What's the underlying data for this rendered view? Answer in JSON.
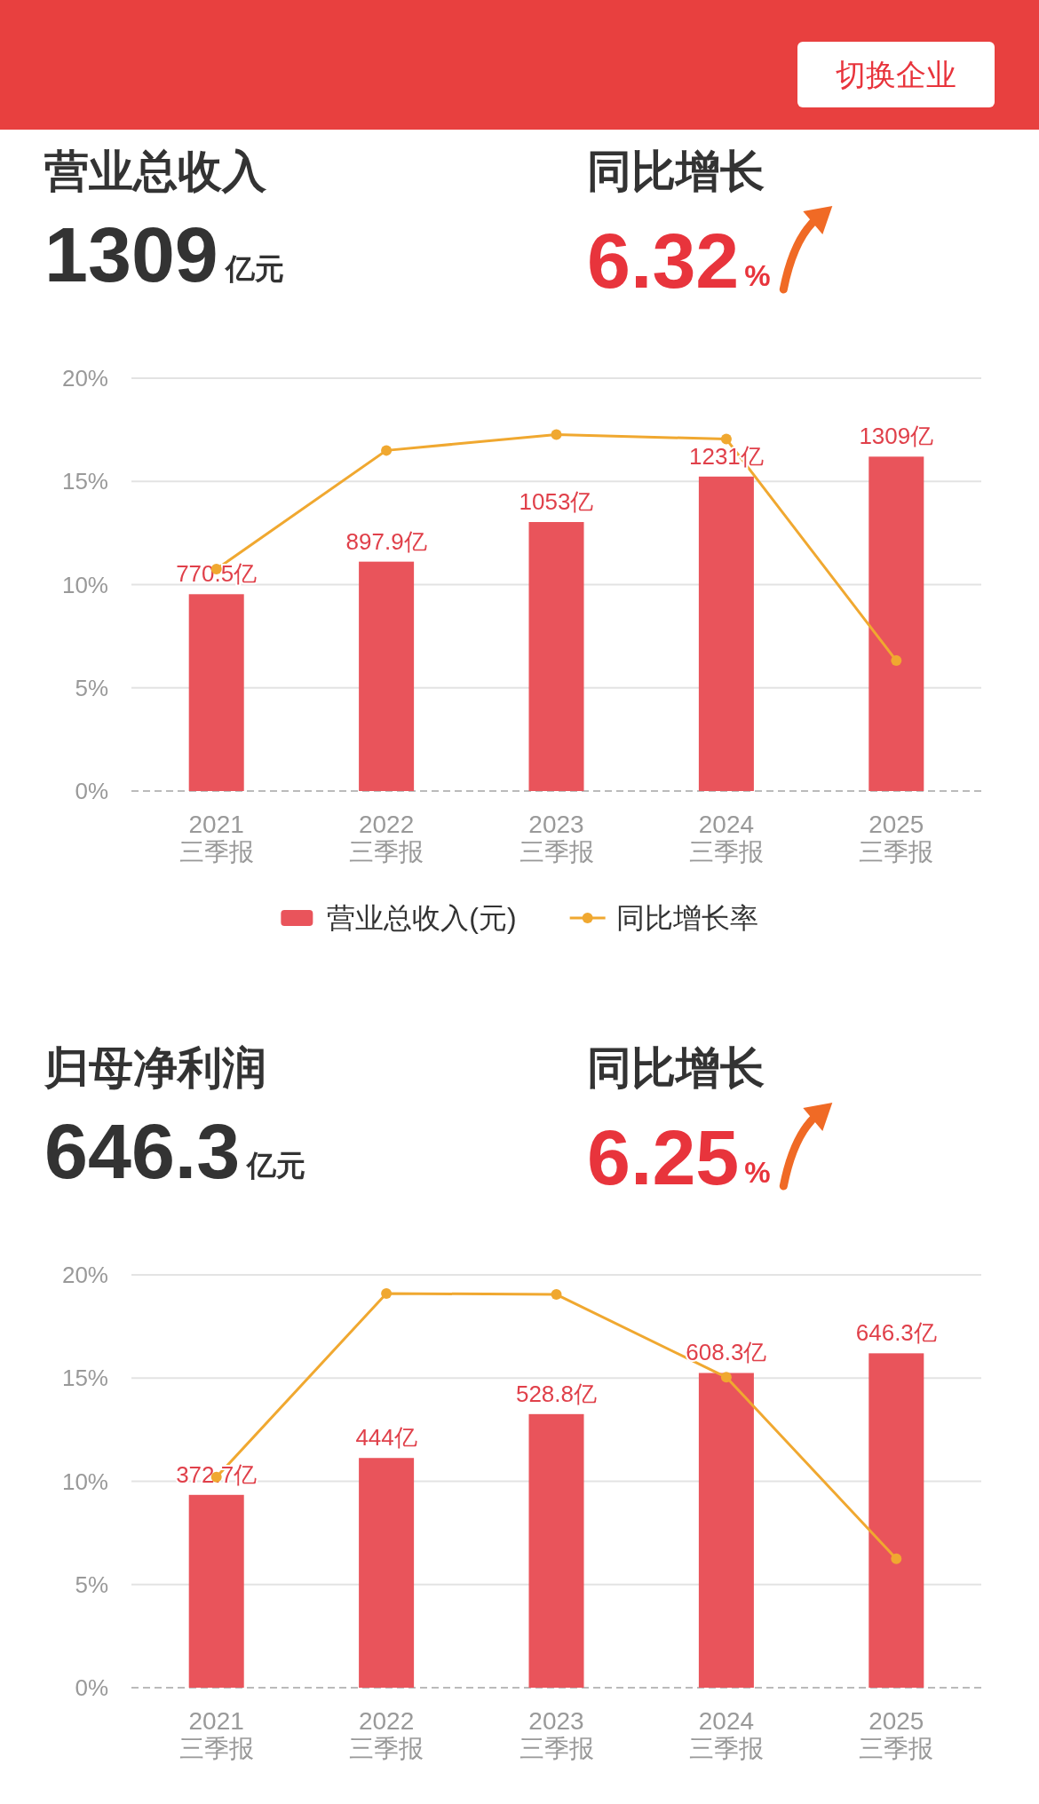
{
  "chart_data": [
    {
      "type": "bar",
      "title": "营业总收入",
      "annotations": [
        "1309",
        "亿元",
        "同比增长",
        "6.32",
        "%",
        "切换企业"
      ],
      "categories": [
        "2021\n三季报",
        "2022\n三季报",
        "2023\n三季报",
        "2024\n三季报",
        "2025\n三季报"
      ],
      "series": [
        {
          "name": "营业总收入(元)",
          "axis": "y2",
          "color": "#e9545b",
          "values": [
            770.5,
            897.9,
            1053,
            1231,
            1309
          ],
          "value_labels": [
            "770.5亿",
            "897.9亿",
            "1053亿",
            "1231亿",
            "1309亿"
          ]
        },
        {
          "name": "同比增长率",
          "type": "line",
          "color": "#f0a830",
          "values": [
            10.75,
            16.5,
            17.27,
            17.05,
            6.32
          ]
        }
      ],
      "ylim": [
        0,
        20
      ],
      "yticks": [
        {
          "value": 0,
          "label": "0%"
        },
        {
          "value": 5,
          "label": "5%"
        },
        {
          "value": 10,
          "label": "10%"
        },
        {
          "value": 15,
          "label": "15%"
        },
        {
          "value": 20,
          "label": "20%"
        }
      ],
      "grid": "y",
      "legend": "bottom",
      "marker": "circle"
    },
    {
      "type": "bar",
      "title": "归母净利润",
      "annotations": [
        "646.3",
        "亿元",
        "同比增长",
        "6.25",
        "%"
      ],
      "categories": [
        "2021\n三季报",
        "2022\n三季报",
        "2023\n三季报",
        "2024\n三季报",
        "2025\n三季报"
      ],
      "series": [
        {
          "axis": "y2",
          "color": "#e9545b",
          "values": [
            372.7,
            444,
            528.8,
            608.3,
            646.3
          ],
          "value_labels": [
            "372.7亿",
            "444亿",
            "528.8亿",
            "608.3亿",
            "646.3亿"
          ]
        },
        {
          "type": "line",
          "color": "#f0a830",
          "values": [
            10.2,
            19.1,
            19.05,
            15.04,
            6.25
          ]
        }
      ],
      "ylim": [
        0,
        20
      ],
      "yticks": [
        {
          "value": 0,
          "label": "0%"
        },
        {
          "value": 5,
          "label": "5%"
        },
        {
          "value": 10,
          "label": "10%"
        },
        {
          "value": 15,
          "label": "15%"
        },
        {
          "value": 20,
          "label": "20%"
        }
      ],
      "grid": "y",
      "marker": "circle"
    }
  ]
}
